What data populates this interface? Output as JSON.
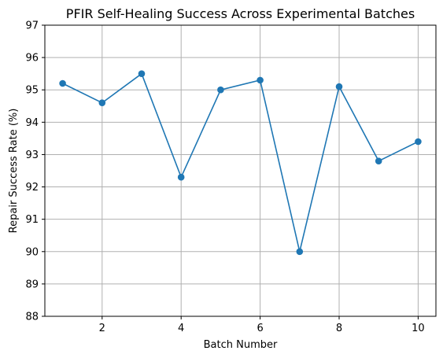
{
  "chart_data": {
    "type": "line",
    "title": "PFIR Self-Healing Success Across Experimental Batches",
    "xlabel": "Batch Number",
    "ylabel": "Repair Success Rate (%)",
    "xlim": [
      0.55,
      10.45
    ],
    "ylim": [
      88,
      97
    ],
    "xticks": [
      2,
      4,
      6,
      8,
      10
    ],
    "yticks": [
      88,
      89,
      90,
      91,
      92,
      93,
      94,
      95,
      96,
      97
    ],
    "grid": true,
    "series": [
      {
        "color": "#1f77b4",
        "marker": "circle",
        "x": [
          1,
          2,
          3,
          4,
          5,
          6,
          7,
          8,
          9,
          10
        ],
        "values": [
          95.2,
          94.6,
          95.5,
          92.3,
          95.0,
          95.3,
          90.0,
          95.1,
          92.8,
          93.4
        ]
      }
    ]
  }
}
